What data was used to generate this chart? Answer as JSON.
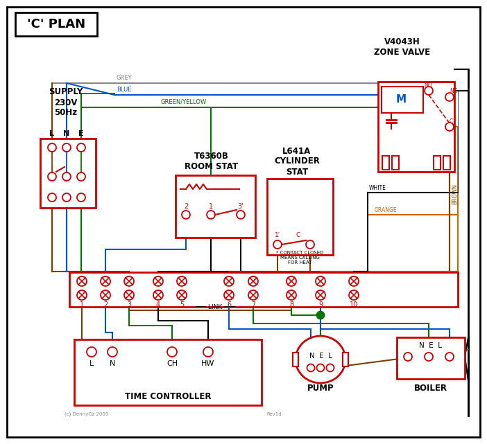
{
  "title": "'C' PLAN",
  "red": "#cc0000",
  "blue": "#0055cc",
  "green": "#007700",
  "grey": "#888888",
  "brown": "#7b3f00",
  "orange": "#cc6600",
  "black": "#000000",
  "supply_text": "SUPPLY\n230V\n50Hz",
  "zone_valve_title": "V4043H\nZONE VALVE",
  "room_stat_title": "T6360B\nROOM STAT",
  "cylinder_stat_title": "L641A\nCYLINDER\nSTAT",
  "time_controller_label": "TIME CONTROLLER",
  "pump_label": "PUMP",
  "boiler_label": "BOILER",
  "terminal_labels": [
    "1",
    "2",
    "3",
    "4",
    "5",
    "6",
    "7",
    "8",
    "9",
    "10"
  ],
  "tc_labels": [
    "L",
    "N",
    "CH",
    "HW"
  ],
  "link_label": "LINK",
  "contact_note": "* CONTACT CLOSED\nMEANS CALLING\nFOR HEAT",
  "copyright": "(c) DennyGz 2009",
  "rev": "Rev1d"
}
